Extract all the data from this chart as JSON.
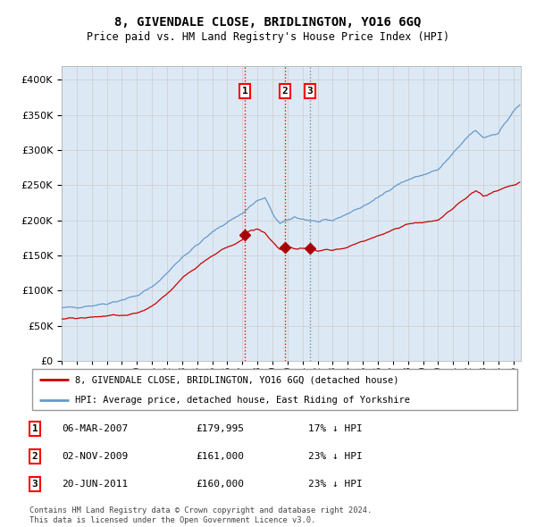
{
  "title": "8, GIVENDALE CLOSE, BRIDLINGTON, YO16 6GQ",
  "subtitle": "Price paid vs. HM Land Registry's House Price Index (HPI)",
  "hpi_label": "HPI: Average price, detached house, East Riding of Yorkshire",
  "prop_label": "8, GIVENDALE CLOSE, BRIDLINGTON, YO16 6GQ (detached house)",
  "hpi_color": "#6699cc",
  "prop_color": "#cc0000",
  "marker_color": "#aa0000",
  "bg_color": "#dce9f5",
  "transactions": [
    {
      "id": 1,
      "date": "06-MAR-2007",
      "price": 179995,
      "pct": "17% ↓ HPI",
      "x_year": 2007.17
    },
    {
      "id": 2,
      "date": "02-NOV-2009",
      "price": 161000,
      "pct": "23% ↓ HPI",
      "x_year": 2009.84
    },
    {
      "id": 3,
      "date": "20-JUN-2011",
      "price": 160000,
      "pct": "23% ↓ HPI",
      "x_year": 2011.47
    }
  ],
  "footnote": "Contains HM Land Registry data © Crown copyright and database right 2024.\nThis data is licensed under the Open Government Licence v3.0.",
  "ylim": [
    0,
    420000
  ],
  "xlim_start": 1995.0,
  "xlim_end": 2025.5,
  "hpi_anchors_x": [
    1995.0,
    1996.0,
    1997.0,
    1998.0,
    1999.0,
    2000.0,
    2001.0,
    2002.0,
    2003.0,
    2004.0,
    2005.0,
    2006.0,
    2007.0,
    2007.5,
    2008.0,
    2008.5,
    2009.0,
    2009.5,
    2010.0,
    2010.5,
    2011.0,
    2011.5,
    2012.0,
    2013.0,
    2014.0,
    2015.0,
    2016.0,
    2017.0,
    2018.0,
    2019.0,
    2020.0,
    2021.0,
    2022.0,
    2022.5,
    2023.0,
    2024.0,
    2024.5,
    2025.0,
    2025.45
  ],
  "hpi_anchors_y": [
    75000,
    77000,
    79000,
    82000,
    87000,
    93000,
    105000,
    125000,
    148000,
    165000,
    183000,
    198000,
    210000,
    220000,
    228000,
    232000,
    210000,
    195000,
    200000,
    205000,
    202000,
    200000,
    198000,
    200000,
    210000,
    220000,
    232000,
    248000,
    258000,
    265000,
    272000,
    295000,
    320000,
    328000,
    318000,
    325000,
    340000,
    355000,
    365000
  ],
  "prop_anchors_x": [
    1995.0,
    1996.0,
    1997.0,
    1998.0,
    1999.0,
    2000.0,
    2001.0,
    2002.0,
    2003.0,
    2004.0,
    2005.0,
    2006.0,
    2007.0,
    2007.17,
    2007.5,
    2008.0,
    2008.5,
    2009.0,
    2009.5,
    2009.84,
    2010.0,
    2010.5,
    2011.0,
    2011.47,
    2012.0,
    2013.0,
    2014.0,
    2015.0,
    2016.0,
    2017.0,
    2018.0,
    2019.0,
    2020.0,
    2021.0,
    2022.0,
    2022.5,
    2023.0,
    2024.0,
    2024.5,
    2025.0,
    2025.45
  ],
  "prop_anchors_y": [
    60000,
    61000,
    62000,
    64000,
    65000,
    68000,
    78000,
    95000,
    118000,
    135000,
    150000,
    162000,
    172000,
    179995,
    185000,
    188000,
    182000,
    168000,
    158000,
    161000,
    162000,
    160000,
    160000,
    160000,
    157000,
    158000,
    162000,
    170000,
    178000,
    187000,
    195000,
    198000,
    200000,
    218000,
    235000,
    242000,
    235000,
    242000,
    248000,
    250000,
    255000
  ]
}
